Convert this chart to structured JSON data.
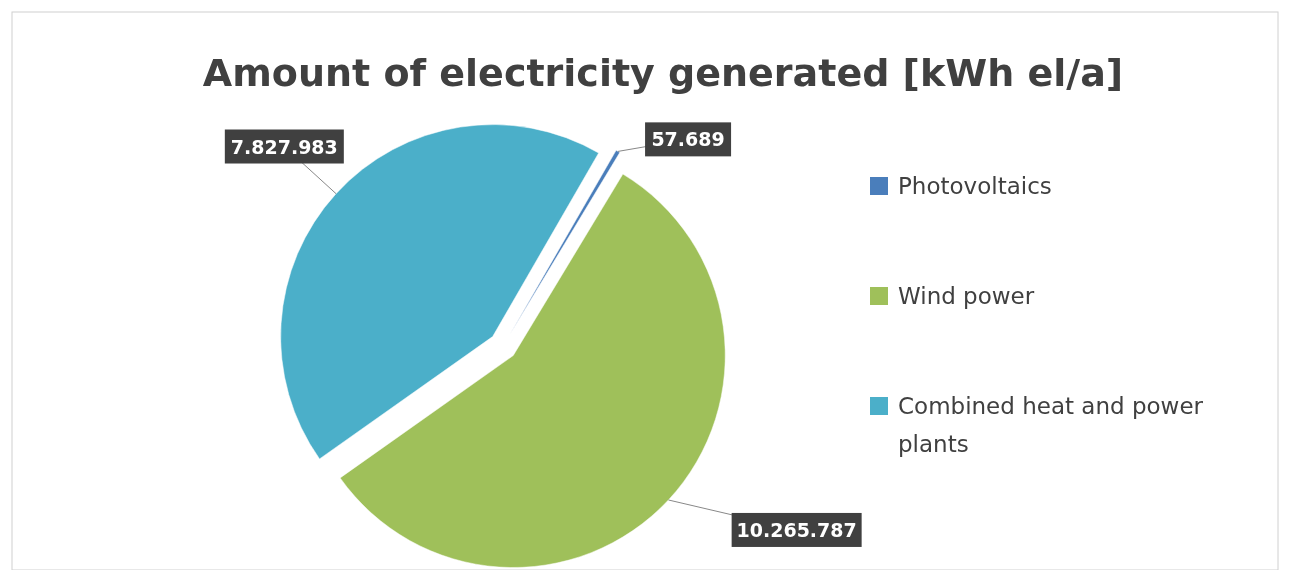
{
  "chart_data": {
    "type": "pie",
    "title": "Amount of electricity generated [kWh el/a]",
    "categories": [
      "Photovoltaics",
      "Wind power",
      "Combined heat and power plants"
    ],
    "values": [
      57689,
      10265787,
      7827983
    ],
    "value_labels": [
      "57.689",
      "10.265.787",
      "7.827.983"
    ],
    "colors": [
      "#4a7ebb",
      "#9fc05a",
      "#4bafc9"
    ],
    "legend": "right"
  }
}
